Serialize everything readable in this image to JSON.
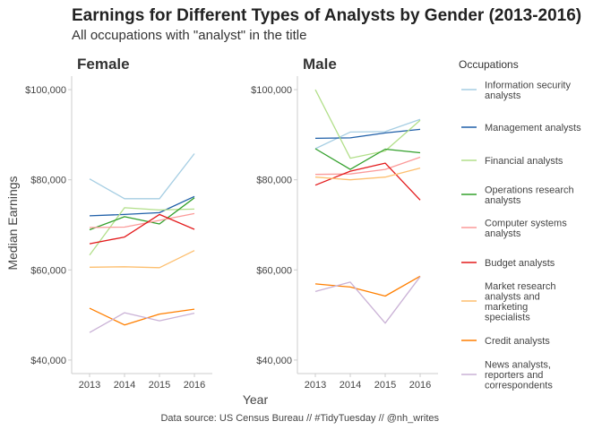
{
  "chart_data": {
    "type": "line",
    "title": "Earnings for Different Types of Analysts by Gender (2013-2016)",
    "subtitle": "All occupations with \"analyst\" in the title",
    "xlabel": "Year",
    "ylabel": "Median Earnings",
    "caption": "Data source: US Census Bureau // #TidyTuesday // @nh_writes",
    "x": [
      2013,
      2014,
      2015,
      2016
    ],
    "x_ticks": [
      "2013",
      "2014",
      "2015",
      "2016"
    ],
    "ylim": [
      37000,
      103000
    ],
    "y_ticks": [
      {
        "value": 40000,
        "label": "$40,000"
      },
      {
        "value": 60000,
        "label": "$60,000"
      },
      {
        "value": 80000,
        "label": "$80,000"
      },
      {
        "value": 100000,
        "label": "$100,000"
      }
    ],
    "grid": false,
    "legend": {
      "title": "Occupations",
      "placement": "right",
      "entries": [
        {
          "name": "Information security analysts",
          "lines": [
            "Information security",
            "analysts"
          ],
          "color": "#a6cee3"
        },
        {
          "name": "Management analysts",
          "lines": [
            "Management analysts"
          ],
          "color": "#1f5fa8"
        },
        {
          "name": "Financial analysts",
          "lines": [
            "Financial analysts"
          ],
          "color": "#b2df8a"
        },
        {
          "name": "Operations research analysts",
          "lines": [
            "Operations research",
            "analysts"
          ],
          "color": "#33a02c"
        },
        {
          "name": "Computer systems analysts",
          "lines": [
            "Computer systems",
            "analysts"
          ],
          "color": "#fb9a99"
        },
        {
          "name": "Budget analysts",
          "lines": [
            "Budget analysts"
          ],
          "color": "#e31a1c"
        },
        {
          "name": "Market research analysts and marketing specialists",
          "lines": [
            "Market research",
            "analysts and",
            "marketing",
            "specialists"
          ],
          "color": "#fdbf6f"
        },
        {
          "name": "Credit analysts",
          "lines": [
            "Credit analysts"
          ],
          "color": "#ff7f00"
        },
        {
          "name": "News analysts, reporters and correspondents",
          "lines": [
            "News analysts,",
            "reporters and",
            "correspondents"
          ],
          "color": "#cab2d6"
        }
      ]
    },
    "panels": [
      {
        "label": "Female",
        "series": [
          {
            "name": "Information security analysts",
            "values": [
              80200,
              75800,
              75800,
              85800
            ]
          },
          {
            "name": "Management analysts",
            "values": [
              72000,
              72300,
              72700,
              76300
            ]
          },
          {
            "name": "Financial analysts",
            "values": [
              63300,
              73800,
              73300,
              73500
            ]
          },
          {
            "name": "Operations research analysts",
            "values": [
              68900,
              71800,
              70200,
              76000
            ]
          },
          {
            "name": "Computer systems analysts",
            "values": [
              69400,
              69500,
              71000,
              72500
            ]
          },
          {
            "name": "Budget analysts",
            "values": [
              65800,
              67300,
              72300,
              69000
            ]
          },
          {
            "name": "Market research analysts and marketing specialists",
            "values": [
              60600,
              60700,
              60500,
              64300
            ]
          },
          {
            "name": "Credit analysts",
            "values": [
              51500,
              47800,
              50200,
              51300
            ]
          },
          {
            "name": "News analysts, reporters and correspondents",
            "values": [
              46100,
              50500,
              48700,
              50400
            ]
          }
        ]
      },
      {
        "label": "Male",
        "series": [
          {
            "name": "Information security analysts",
            "values": [
              86900,
              90600,
              90700,
              93400
            ]
          },
          {
            "name": "Management analysts",
            "values": [
              89200,
              89300,
              90400,
              91200
            ]
          },
          {
            "name": "Financial analysts",
            "values": [
              100000,
              84800,
              86400,
              93200
            ]
          },
          {
            "name": "Operations research analysts",
            "values": [
              86900,
              82300,
              86800,
              86000
            ]
          },
          {
            "name": "Computer systems analysts",
            "values": [
              81200,
              81300,
              82300,
              85000
            ]
          },
          {
            "name": "Budget analysts",
            "values": [
              78800,
              81900,
              83700,
              75500
            ]
          },
          {
            "name": "Market research analysts and marketing specialists",
            "values": [
              80600,
              80000,
              80600,
              82600
            ]
          },
          {
            "name": "Credit analysts",
            "values": [
              56900,
              56200,
              54200,
              58600
            ]
          },
          {
            "name": "News analysts, reporters and correspondents",
            "values": [
              55200,
              57300,
              48200,
              58500
            ]
          }
        ]
      }
    ]
  }
}
